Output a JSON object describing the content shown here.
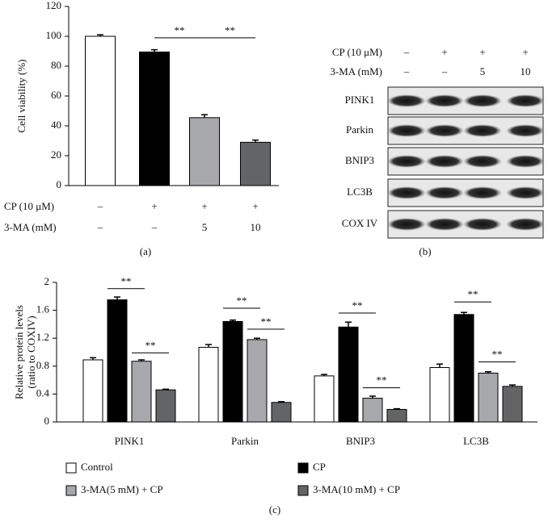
{
  "panels": [
    "(a)",
    "(b)",
    "(c)"
  ],
  "chart_data": [
    {
      "type": "bar",
      "ylabel": "Cell viability (%)",
      "values": [
        100,
        89.5,
        45.5,
        29
      ],
      "errors": [
        1,
        1.5,
        2,
        1.5
      ],
      "colors": [
        "#ffffff",
        "#000000",
        "#a6a8ab",
        "#636466"
      ],
      "ylim": [
        0,
        120
      ],
      "yticks": [
        0,
        20,
        40,
        60,
        80,
        100,
        120
      ],
      "annotations": [
        {
          "text": "**",
          "from": 1,
          "to": 2,
          "y": 99
        },
        {
          "text": "**",
          "from": 2,
          "to": 3,
          "y": 99
        }
      ],
      "treatments": [
        {
          "label": "CP (10 μM)",
          "values": [
            "–",
            "+",
            "+",
            "+"
          ]
        },
        {
          "label": "3-MA (mM)",
          "values": [
            "–",
            "–",
            "5",
            "10"
          ]
        }
      ]
    },
    {
      "type": "grouped-bar",
      "ylabel": [
        "Relative protein levels",
        "(ratio to COXIV)"
      ],
      "categories": [
        "PINK1",
        "Parkin",
        "BNIP3",
        "LC3B"
      ],
      "series": [
        {
          "name": "Control",
          "color": "#ffffff",
          "values": [
            0.89,
            1.07,
            0.66,
            0.78
          ],
          "errors": [
            0.03,
            0.04,
            0.02,
            0.05
          ]
        },
        {
          "name": "CP",
          "color": "#000000",
          "values": [
            1.75,
            1.44,
            1.36,
            1.54
          ],
          "errors": [
            0.04,
            0.02,
            0.07,
            0.03
          ]
        },
        {
          "name": "3-MA(5 mM) + CP",
          "color": "#a6a8ab",
          "values": [
            0.87,
            1.18,
            0.34,
            0.7
          ],
          "errors": [
            0.02,
            0.02,
            0.03,
            0.02
          ]
        },
        {
          "name": "3-MA(10 mM) + CP",
          "color": "#636466",
          "values": [
            0.46,
            0.28,
            0.18,
            0.51
          ],
          "errors": [
            0.01,
            0.01,
            0.01,
            0.02
          ]
        }
      ],
      "ylim": [
        0,
        2
      ],
      "yticks": [
        0,
        0.4,
        0.8,
        1.2,
        1.6,
        2
      ],
      "annotations": [
        {
          "text": "**",
          "category": 0,
          "from": 1,
          "to": 2,
          "y": 1.91
        },
        {
          "text": "**",
          "category": 0,
          "from": 2,
          "to": 3,
          "y": 0.99
        },
        {
          "text": "**",
          "category": 1,
          "from": 1,
          "to": 2,
          "y": 1.63
        },
        {
          "text": "**",
          "category": 1,
          "from": 2,
          "to": 3,
          "y": 1.33
        },
        {
          "text": "**",
          "category": 2,
          "from": 1,
          "to": 2,
          "y": 1.56
        },
        {
          "text": "**",
          "category": 2,
          "from": 2,
          "to": 3,
          "y": 0.49
        },
        {
          "text": "**",
          "category": 3,
          "from": 1,
          "to": 2,
          "y": 1.72
        },
        {
          "text": "**",
          "category": 3,
          "from": 2,
          "to": 3,
          "y": 0.86
        }
      ]
    }
  ],
  "blot": {
    "treatments": [
      {
        "label": "CP (10 μM)",
        "values": [
          "–",
          "+",
          "+",
          "+"
        ]
      },
      {
        "label": "3-MA (mM)",
        "values": [
          "–",
          "–",
          "5",
          "10"
        ]
      }
    ],
    "rows": [
      "PINK1",
      "Parkin",
      "BNIP3",
      "LC3B",
      "COX IV"
    ]
  }
}
